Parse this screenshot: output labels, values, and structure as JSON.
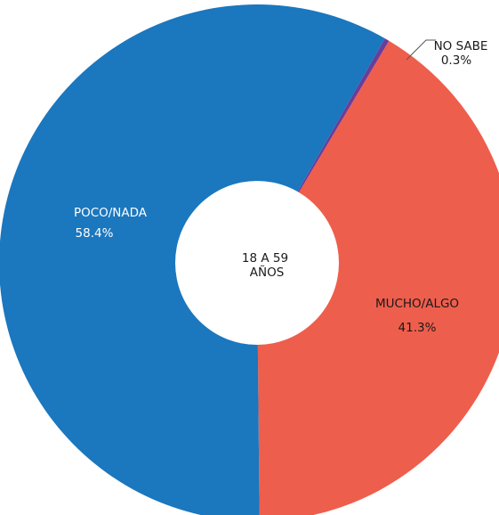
{
  "chart_data": {
    "type": "pie",
    "donut": true,
    "center_label": [
      "18 A 59",
      "AÑOS"
    ],
    "slices": [
      {
        "name": "NO SABE",
        "value_label": "0.3%",
        "value": 0.3,
        "color": "#6a3d9a"
      },
      {
        "name": "MUCHO/ALGO",
        "value_label": "41.3%",
        "value": 41.3,
        "color": "#ee5e4c"
      },
      {
        "name": "POCO/NADA",
        "value_label": "58.4%",
        "value": 58.4,
        "color": "#1b77be"
      }
    ],
    "legend": "none"
  }
}
